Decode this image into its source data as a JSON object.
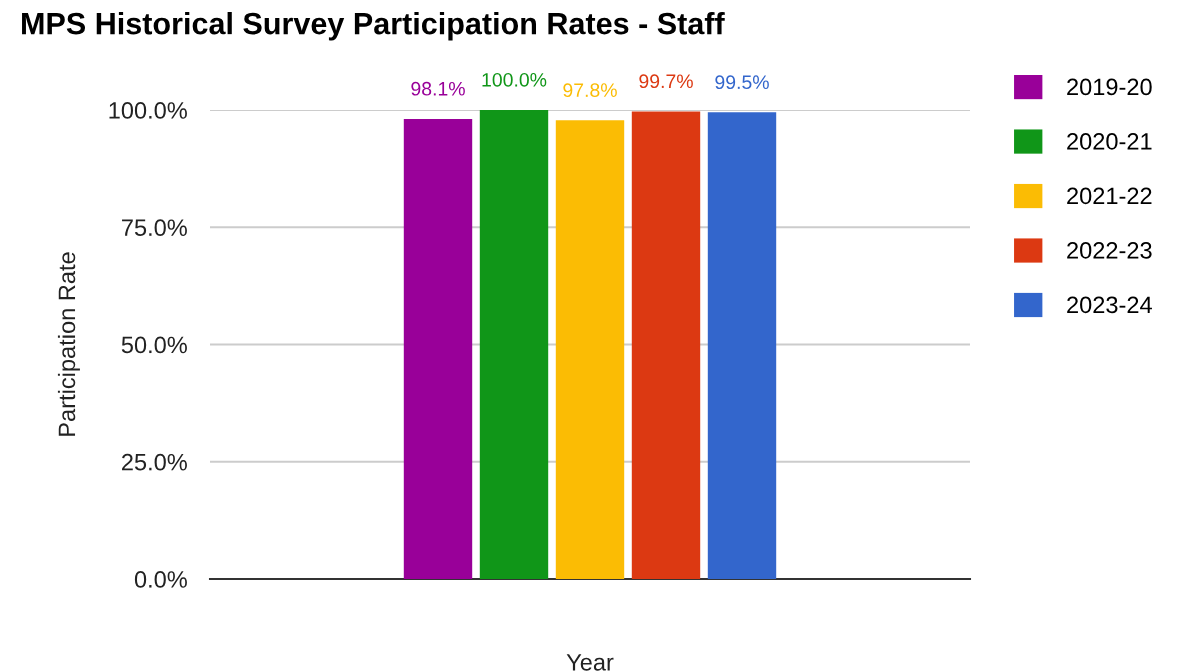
{
  "chart_data": {
    "type": "bar",
    "title": "MPS Historical Survey Participation Rates - Staff",
    "xlabel": "Year",
    "ylabel": "Participation Rate",
    "categories": [
      null
    ],
    "series": [
      {
        "name": "2019-20",
        "color": "#990099",
        "values": [
          98.1
        ],
        "value_labels": [
          "98.1%"
        ]
      },
      {
        "name": "2020-21",
        "color": "#109618",
        "values": [
          100.0
        ],
        "value_labels": [
          "100.0%"
        ]
      },
      {
        "name": "2021-22",
        "color": "#fbbc04",
        "values": [
          97.8
        ],
        "value_labels": [
          "97.8%"
        ]
      },
      {
        "name": "2022-23",
        "color": "#dc3912",
        "values": [
          99.7
        ],
        "value_labels": [
          "99.7%"
        ]
      },
      {
        "name": "2023-24",
        "color": "#3366cc",
        "values": [
          99.5
        ],
        "value_labels": [
          "99.5%"
        ]
      }
    ],
    "ylim": [
      0,
      100
    ],
    "yticks": [
      {
        "value": 0,
        "label": "0.0%"
      },
      {
        "value": 25,
        "label": "25.0%"
      },
      {
        "value": 50,
        "label": "50.0%"
      },
      {
        "value": 75,
        "label": "75.0%"
      },
      {
        "value": 100,
        "label": "100.0%"
      }
    ],
    "grid": "y",
    "legend": "right"
  }
}
